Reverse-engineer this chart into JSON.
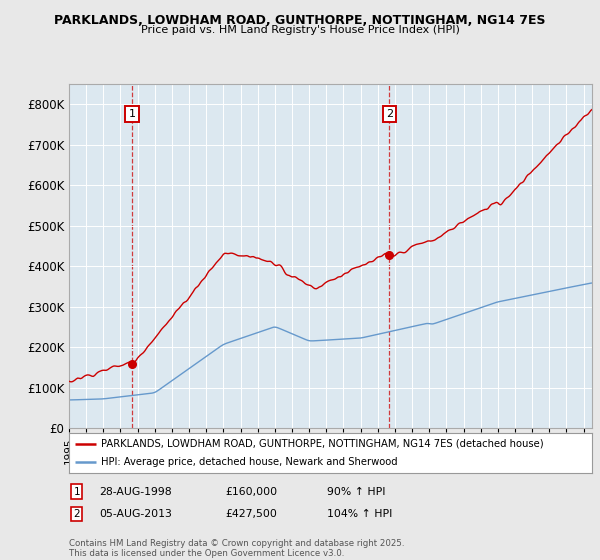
{
  "title1": "PARKLANDS, LOWDHAM ROAD, GUNTHORPE, NOTTINGHAM, NG14 7ES",
  "title2": "Price paid vs. HM Land Registry's House Price Index (HPI)",
  "legend1": "PARKLANDS, LOWDHAM ROAD, GUNTHORPE, NOTTINGHAM, NG14 7ES (detached house)",
  "legend2": "HPI: Average price, detached house, Newark and Sherwood",
  "footer": "Contains HM Land Registry data © Crown copyright and database right 2025.\nThis data is licensed under the Open Government Licence v3.0.",
  "annotation1_label": "1",
  "annotation1_date": "28-AUG-1998",
  "annotation1_price": "£160,000",
  "annotation1_hpi": "90% ↑ HPI",
  "annotation2_label": "2",
  "annotation2_date": "05-AUG-2013",
  "annotation2_price": "£427,500",
  "annotation2_hpi": "104% ↑ HPI",
  "red_color": "#cc0000",
  "blue_color": "#6699cc",
  "background_color": "#e8e8e8",
  "plot_bg_color": "#dce8f0",
  "ylim": [
    0,
    850000
  ],
  "yticks": [
    0,
    100000,
    200000,
    300000,
    400000,
    500000,
    600000,
    700000,
    800000
  ],
  "ytick_labels": [
    "£0",
    "£100K",
    "£200K",
    "£300K",
    "£400K",
    "£500K",
    "£600K",
    "£700K",
    "£800K"
  ],
  "xstart_year": 1995,
  "xend_year": 2025
}
